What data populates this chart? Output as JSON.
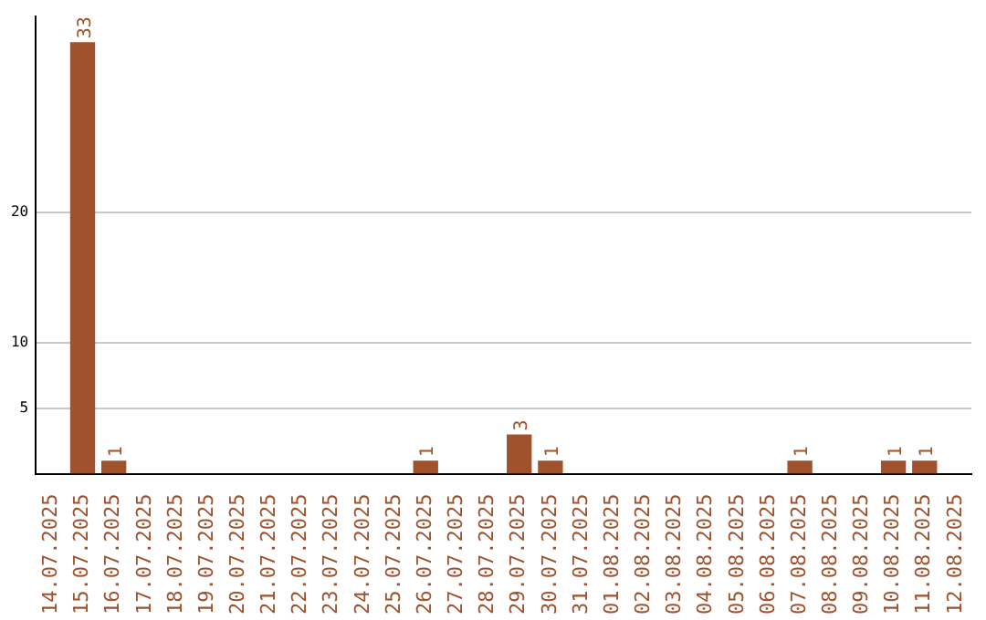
{
  "chart_data": {
    "type": "bar",
    "categories": [
      "14.07.2025",
      "15.07.2025",
      "16.07.2025",
      "17.07.2025",
      "18.07.2025",
      "19.07.2025",
      "20.07.2025",
      "21.07.2025",
      "22.07.2025",
      "23.07.2025",
      "24.07.2025",
      "25.07.2025",
      "26.07.2025",
      "27.07.2025",
      "28.07.2025",
      "29.07.2025",
      "30.07.2025",
      "31.07.2025",
      "01.08.2025",
      "02.08.2025",
      "03.08.2025",
      "04.08.2025",
      "05.08.2025",
      "06.08.2025",
      "07.08.2025",
      "08.08.2025",
      "09.08.2025",
      "10.08.2025",
      "11.08.2025",
      "12.08.2025"
    ],
    "values": [
      0,
      33,
      1,
      0,
      0,
      0,
      0,
      0,
      0,
      0,
      0,
      0,
      1,
      0,
      0,
      3,
      1,
      0,
      0,
      0,
      0,
      0,
      0,
      0,
      1,
      0,
      0,
      1,
      1,
      0
    ],
    "value_labels": [
      null,
      "33",
      "1",
      null,
      null,
      null,
      null,
      null,
      null,
      null,
      null,
      null,
      "1",
      null,
      null,
      "3",
      "1",
      null,
      null,
      null,
      null,
      null,
      null,
      null,
      "1",
      null,
      null,
      "1",
      "1",
      null
    ],
    "color": "#a0522d",
    "ylim": [
      0,
      35
    ],
    "yticks": [
      5,
      10,
      20
    ],
    "grid": "y",
    "legend": false
  }
}
